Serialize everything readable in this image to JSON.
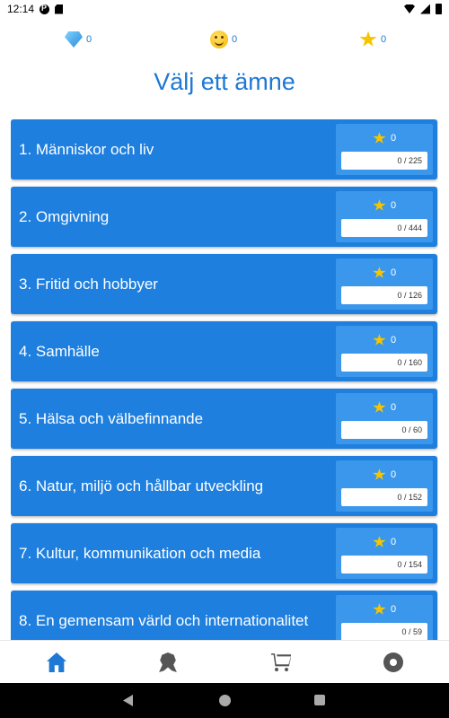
{
  "status_bar": {
    "time": "12:14"
  },
  "counters": {
    "gems": {
      "icon": "gem-icon",
      "value": "0"
    },
    "smileys": {
      "icon": "smiley-icon",
      "value": "0"
    },
    "stars": {
      "icon": "star-icon",
      "value": "0"
    }
  },
  "title": "Välj ett ämne",
  "topics": [
    {
      "label": "1. Människor och liv",
      "stars": "0",
      "progress": "0 / 225"
    },
    {
      "label": "2. Omgivning",
      "stars": "0",
      "progress": "0 / 444"
    },
    {
      "label": "3. Fritid och hobbyer",
      "stars": "0",
      "progress": "0 / 126"
    },
    {
      "label": "4. Samhälle",
      "stars": "0",
      "progress": "0 / 160"
    },
    {
      "label": "5. Hälsa och välbefinnande",
      "stars": "0",
      "progress": "0 / 60"
    },
    {
      "label": "6. Natur, miljö och hållbar utveckling",
      "stars": "0",
      "progress": "0 / 152"
    },
    {
      "label": "7. Kultur, kommunikation och media",
      "stars": "0",
      "progress": "0 / 154"
    },
    {
      "label": "8. En gemensam värld och internationalitet",
      "stars": "0",
      "progress": "0 / 59"
    }
  ],
  "bottom_nav": {
    "items": [
      {
        "icon": "home-icon",
        "active": true
      },
      {
        "icon": "award-icon",
        "active": false
      },
      {
        "icon": "cart-icon",
        "active": false
      },
      {
        "icon": "gear-icon",
        "active": false
      }
    ]
  },
  "colors": {
    "accent": "#1e78d4",
    "card": "#1e7fde",
    "card_panel": "#3a97ec",
    "star": "#f6c500"
  }
}
